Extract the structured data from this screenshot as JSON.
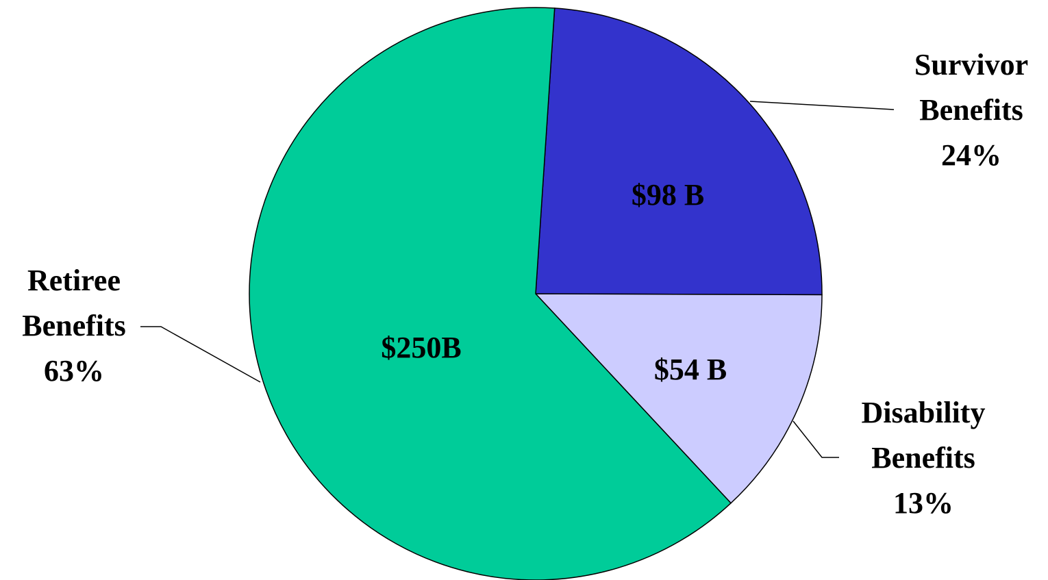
{
  "chart_data": {
    "type": "pie",
    "categories": [
      "Survivor Benefits",
      "Disability Benefits",
      "Retiree Benefits"
    ],
    "values": [
      24,
      13,
      63
    ],
    "value_labels": [
      "24%",
      "13%",
      "63%"
    ],
    "amounts": [
      98,
      54,
      250
    ],
    "amount_labels": [
      "$98 B",
      "$54 B",
      "$250B"
    ],
    "colors": [
      "#3333cc",
      "#ccccff",
      "#00cc99"
    ]
  }
}
